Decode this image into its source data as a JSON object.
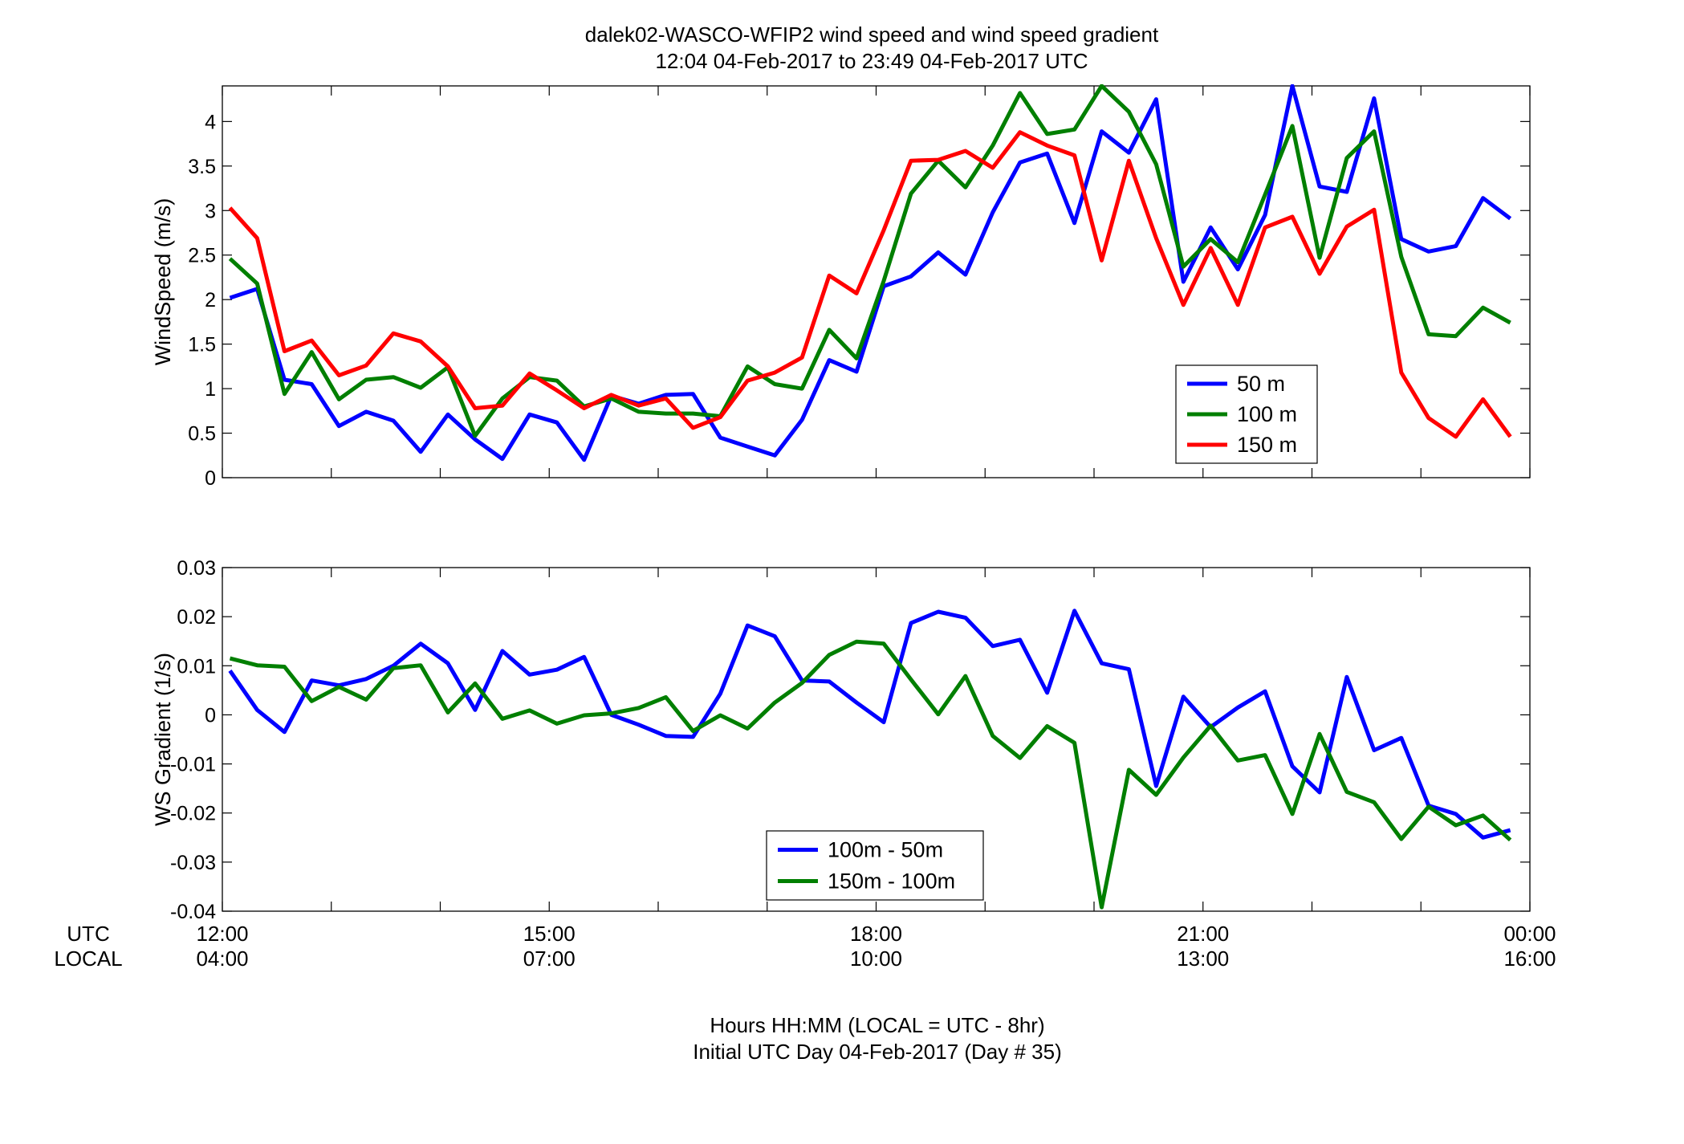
{
  "title": {
    "line1": "dalek02-WASCO-WFIP2  wind speed and wind speed gradient",
    "line2": "12:04 04-Feb-2017 to 23:49 04-Feb-2017  UTC"
  },
  "xaxis": {
    "row_label_utc": "UTC",
    "row_label_local": "LOCAL",
    "utc_ticks": [
      "12:00",
      "15:00",
      "18:00",
      "21:00",
      "00:00"
    ],
    "local_ticks": [
      "04:00",
      "07:00",
      "10:00",
      "13:00",
      "16:00"
    ],
    "label_line1": "Hours HH:MM  (LOCAL = UTC - 8hr)",
    "label_line2": "Initial UTC Day 04-Feb-2017 (Day # 35)"
  },
  "colors": {
    "blue": "#0000ff",
    "green": "#007f00",
    "red": "#ff0000"
  },
  "chart_data": [
    {
      "type": "line",
      "ylabel": "WindSpeed (m/s)",
      "ylim": [
        0,
        4.4
      ],
      "yticks": [
        0,
        0.5,
        1,
        1.5,
        2,
        2.5,
        3,
        3.5,
        4
      ],
      "ytick_labels": [
        "0",
        "0.5",
        "1",
        "1.5",
        "2",
        "2.5",
        "3",
        "3.5",
        "4"
      ],
      "xlim_hours": [
        12,
        24
      ],
      "grid": false,
      "legend_position": "lower-right",
      "x_hours": [
        12.07,
        12.32,
        12.57,
        12.82,
        13.07,
        13.32,
        13.57,
        13.82,
        14.07,
        14.32,
        14.57,
        14.82,
        15.07,
        15.32,
        15.57,
        15.82,
        16.07,
        16.32,
        16.57,
        16.82,
        17.07,
        17.32,
        17.57,
        17.82,
        18.07,
        18.32,
        18.57,
        18.82,
        19.07,
        19.32,
        19.57,
        19.82,
        20.07,
        20.32,
        20.57,
        20.82,
        21.07,
        21.32,
        21.57,
        21.82,
        22.07,
        22.32,
        22.57,
        22.82,
        23.07,
        23.32,
        23.57,
        23.82
      ],
      "series": [
        {
          "name": "50 m",
          "color": "#0000ff",
          "values": [
            2.02,
            2.12,
            1.1,
            1.05,
            0.58,
            0.74,
            0.64,
            0.29,
            0.71,
            0.43,
            0.21,
            0.71,
            0.62,
            0.2,
            0.92,
            0.83,
            0.93,
            0.94,
            0.45,
            0.35,
            0.25,
            0.65,
            1.32,
            1.19,
            2.15,
            2.26,
            2.53,
            2.28,
            2.98,
            3.54,
            3.64,
            2.86,
            3.89,
            3.65,
            4.25,
            2.2,
            2.81,
            2.34,
            2.95,
            4.4,
            3.27,
            3.21,
            4.26,
            2.68,
            2.54,
            2.6,
            3.14,
            2.91
          ]
        },
        {
          "name": "100 m",
          "color": "#007f00",
          "values": [
            2.46,
            2.18,
            0.94,
            1.41,
            0.88,
            1.1,
            1.13,
            1.01,
            1.24,
            0.47,
            0.89,
            1.13,
            1.09,
            0.8,
            0.89,
            0.74,
            0.72,
            0.72,
            0.69,
            1.25,
            1.05,
            1.0,
            1.66,
            1.34,
            2.21,
            3.19,
            3.56,
            3.26,
            3.73,
            4.32,
            3.86,
            3.91,
            4.4,
            4.11,
            3.52,
            2.37,
            2.68,
            2.42,
            3.18,
            3.95,
            2.47,
            3.59,
            3.89,
            2.48,
            1.61,
            1.59,
            1.91,
            1.74
          ]
        },
        {
          "name": "150 m",
          "color": "#ff0000",
          "values": [
            3.03,
            2.69,
            1.42,
            1.54,
            1.15,
            1.26,
            1.62,
            1.53,
            1.25,
            0.78,
            0.81,
            1.17,
            0.98,
            0.78,
            0.93,
            0.81,
            0.89,
            0.56,
            0.68,
            1.09,
            1.18,
            1.35,
            2.27,
            2.07,
            2.78,
            3.56,
            3.57,
            3.67,
            3.48,
            3.88,
            3.73,
            3.62,
            2.44,
            3.56,
            2.69,
            1.94,
            2.58,
            1.94,
            2.81,
            2.93,
            2.29,
            2.82,
            3.01,
            1.18,
            0.67,
            0.46,
            0.88,
            0.46
          ]
        }
      ]
    },
    {
      "type": "line",
      "ylabel": "WS Gradient (1/s)",
      "ylim": [
        -0.04,
        0.03
      ],
      "yticks": [
        -0.04,
        -0.03,
        -0.02,
        -0.01,
        0,
        0.01,
        0.02,
        0.03
      ],
      "ytick_labels": [
        "-0.04",
        "-0.03",
        "-0.02",
        "-0.01",
        "0",
        "0.01",
        "0.02",
        "0.03"
      ],
      "xlim_hours": [
        12,
        24
      ],
      "grid": false,
      "legend_position": "lower-center",
      "x_hours": [
        12.07,
        12.32,
        12.57,
        12.82,
        13.07,
        13.32,
        13.57,
        13.82,
        14.07,
        14.32,
        14.57,
        14.82,
        15.07,
        15.32,
        15.57,
        15.82,
        16.07,
        16.32,
        16.57,
        16.82,
        17.07,
        17.32,
        17.57,
        17.82,
        18.07,
        18.32,
        18.57,
        18.82,
        19.07,
        19.32,
        19.57,
        19.82,
        20.07,
        20.32,
        20.57,
        20.82,
        21.07,
        21.32,
        21.57,
        21.82,
        22.07,
        22.32,
        22.57,
        22.82,
        23.07,
        23.32,
        23.57,
        23.82
      ],
      "series": [
        {
          "name": "100m - 50m",
          "color": "#0000ff",
          "values": [
            0.009,
            0.001,
            -0.0035,
            0.007,
            0.006,
            0.0073,
            0.01,
            0.0145,
            0.0105,
            0.001,
            0.013,
            0.0082,
            0.0092,
            0.0118,
            0.0,
            -0.002,
            -0.0043,
            -0.0045,
            0.0043,
            0.0182,
            0.016,
            0.007,
            0.0068,
            0.0025,
            -0.0015,
            0.0187,
            0.021,
            0.0198,
            0.014,
            0.0153,
            0.0045,
            0.0212,
            0.0105,
            0.0093,
            -0.0145,
            0.0037,
            -0.0025,
            0.0015,
            0.0048,
            -0.0105,
            -0.0158,
            0.0077,
            -0.0072,
            -0.0047,
            -0.0185,
            -0.0202,
            -0.025,
            -0.0235
          ]
        },
        {
          "name": "150m - 100m",
          "color": "#007f00",
          "values": [
            0.0115,
            0.0101,
            0.0098,
            0.0028,
            0.0057,
            0.0031,
            0.0095,
            0.0101,
            0.0005,
            0.0064,
            -0.0008,
            0.0009,
            -0.0018,
            -0.0001,
            0.0003,
            0.0014,
            0.0036,
            -0.0033,
            -0.0001,
            -0.0028,
            0.0025,
            0.0065,
            0.0122,
            0.0149,
            0.0145,
            0.0072,
            0.0001,
            0.0079,
            -0.0043,
            -0.0088,
            -0.0023,
            -0.0057,
            -0.0392,
            -0.0112,
            -0.0163,
            -0.0087,
            -0.0022,
            -0.0093,
            -0.0082,
            -0.0202,
            -0.0039,
            -0.0157,
            -0.0178,
            -0.0253,
            -0.0187,
            -0.0225,
            -0.0205,
            -0.0255
          ]
        }
      ]
    }
  ]
}
